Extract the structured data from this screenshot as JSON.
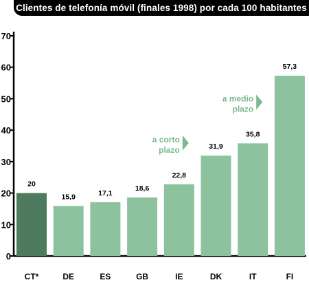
{
  "chart_data": {
    "type": "bar",
    "title": "Clientes de telefonía móvil (finales 1998) por cada 100 habitantes",
    "categories": [
      "CT*",
      "DE",
      "ES",
      "GB",
      "IE",
      "DK",
      "IT",
      "FI"
    ],
    "values": [
      20,
      15.9,
      17.1,
      18.6,
      22.8,
      31.9,
      35.8,
      57.3
    ],
    "value_labels": [
      "20",
      "15,9",
      "17,1",
      "18,6",
      "22,8",
      "31,9",
      "35,8",
      "57,3"
    ],
    "yticks": [
      0,
      10,
      20,
      30,
      40,
      50,
      60,
      70
    ],
    "ylim": [
      0,
      70
    ],
    "xlabel": "",
    "ylabel": "",
    "grid": false,
    "colors": {
      "highlight_bar": "#4e7a5d",
      "bar": "#8cc39e",
      "annotation": "#7ab98e",
      "axis": "#000000"
    },
    "annotations": [
      {
        "lines": [
          "a corto",
          "plazo"
        ],
        "near": "IE"
      },
      {
        "lines": [
          "a medio",
          "plazo"
        ],
        "near": "IT"
      }
    ]
  }
}
